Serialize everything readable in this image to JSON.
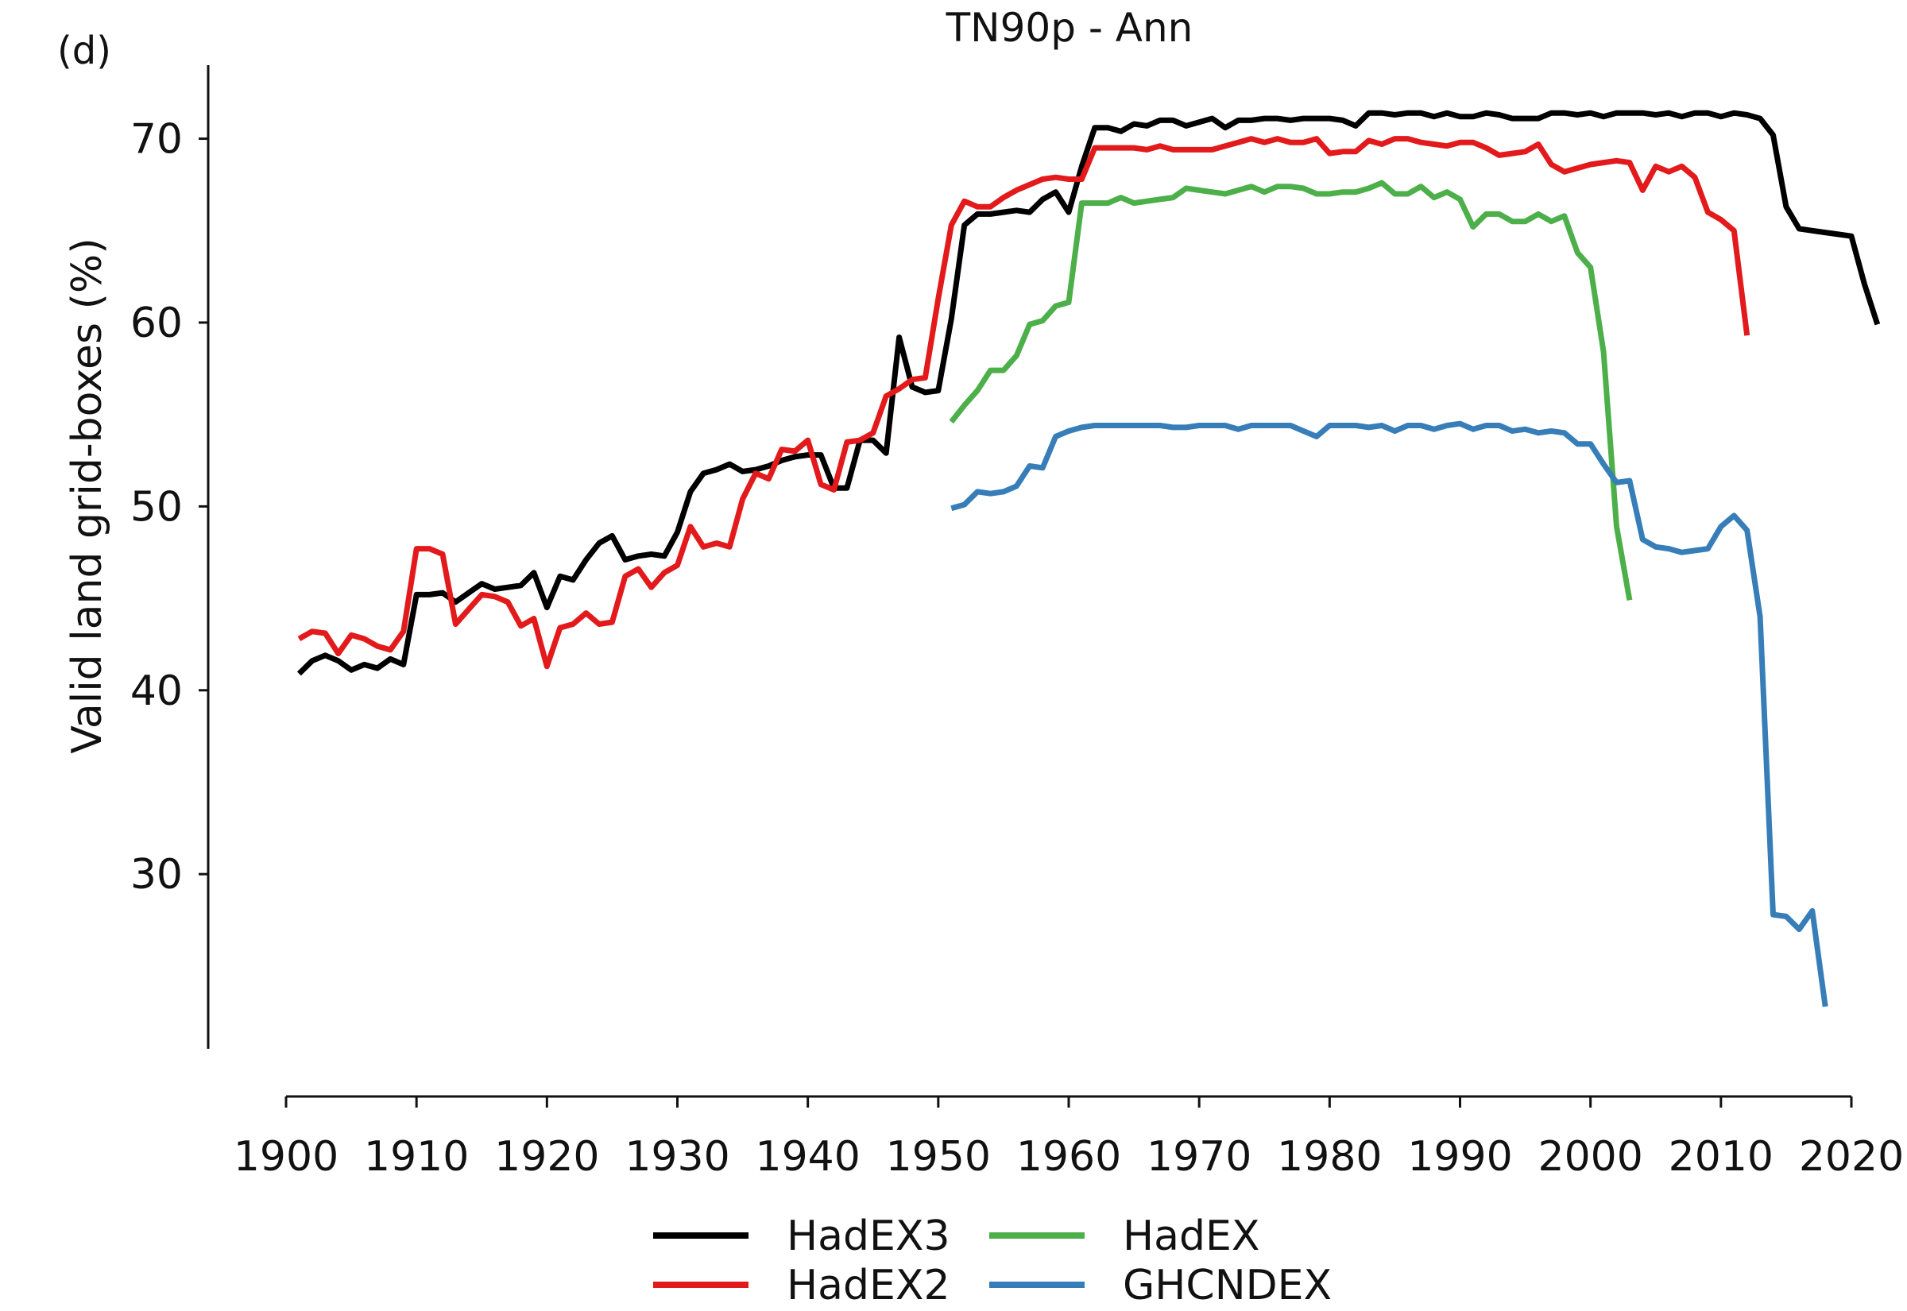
{
  "panel_label": "(d)",
  "chart_data": {
    "type": "line",
    "title": "TN90p - Ann",
    "xlabel": "",
    "ylabel": "Valid land grid-boxes (%)",
    "xlim": [
      1900,
      2020
    ],
    "ylim": [
      20.5,
      74
    ],
    "x_ticks": [
      1900,
      1910,
      1920,
      1930,
      1940,
      1950,
      1960,
      1970,
      1980,
      1990,
      2000,
      2010,
      2020
    ],
    "y_ticks": [
      30,
      40,
      50,
      60,
      70
    ],
    "grid": false,
    "legend_position": "bottom",
    "series": [
      {
        "name": "HadEX3",
        "color": "#000000",
        "x_start": 1901,
        "values": [
          40.9,
          41.6,
          41.9,
          41.6,
          41.1,
          41.4,
          41.2,
          41.7,
          41.4,
          45.2,
          45.2,
          45.3,
          44.8,
          45.3,
          45.8,
          45.5,
          45.6,
          45.7,
          46.4,
          44.5,
          46.2,
          46.0,
          47.1,
          48.0,
          48.4,
          47.1,
          47.3,
          47.4,
          47.3,
          48.6,
          50.8,
          51.8,
          52.0,
          52.3,
          51.9,
          52.0,
          52.2,
          52.5,
          52.7,
          52.8,
          52.8,
          51.0,
          51.0,
          53.6,
          53.6,
          52.9,
          59.2,
          56.5,
          56.2,
          56.3,
          60.2,
          65.3,
          65.9,
          65.9,
          66.0,
          66.1,
          66.0,
          66.7,
          67.1,
          66.0,
          68.5,
          70.6,
          70.6,
          70.4,
          70.8,
          70.7,
          71.0,
          71.0,
          70.7,
          70.9,
          71.1,
          70.6,
          71.0,
          71.0,
          71.1,
          71.1,
          71.0,
          71.1,
          71.1,
          71.1,
          71.0,
          70.7,
          71.4,
          71.4,
          71.3,
          71.4,
          71.4,
          71.2,
          71.4,
          71.2,
          71.2,
          71.4,
          71.3,
          71.1,
          71.1,
          71.1,
          71.4,
          71.4,
          71.3,
          71.4,
          71.2,
          71.4,
          71.4,
          71.4,
          71.3,
          71.4,
          71.2,
          71.4,
          71.4,
          71.2,
          71.4,
          71.3,
          71.1,
          70.2,
          66.3,
          65.1,
          65.0,
          64.9,
          64.8,
          64.7,
          62.1,
          59.9
        ]
      },
      {
        "name": "HadEX2",
        "color": "#e31a1c",
        "x_start": 1901,
        "values": [
          42.8,
          43.2,
          43.1,
          42.0,
          43.0,
          42.8,
          42.4,
          42.2,
          43.2,
          47.7,
          47.7,
          47.4,
          43.6,
          44.4,
          45.2,
          45.1,
          44.8,
          43.5,
          43.9,
          41.3,
          43.4,
          43.6,
          44.2,
          43.6,
          43.7,
          46.2,
          46.6,
          45.6,
          46.4,
          46.8,
          48.9,
          47.8,
          48.0,
          47.8,
          50.4,
          51.8,
          51.5,
          53.1,
          53.0,
          53.6,
          51.2,
          50.9,
          53.5,
          53.6,
          54.0,
          56.0,
          56.4,
          56.9,
          57.0,
          61.3,
          65.3,
          66.6,
          66.3,
          66.3,
          66.8,
          67.2,
          67.5,
          67.8,
          67.9,
          67.8,
          67.8,
          69.5,
          69.5,
          69.5,
          69.5,
          69.4,
          69.6,
          69.4,
          69.4,
          69.4,
          69.4,
          69.6,
          69.8,
          70.0,
          69.8,
          70.0,
          69.8,
          69.8,
          70.0,
          69.2,
          69.3,
          69.3,
          69.9,
          69.7,
          70.0,
          70.0,
          69.8,
          69.7,
          69.6,
          69.8,
          69.8,
          69.5,
          69.1,
          69.2,
          69.3,
          69.7,
          68.6,
          68.2,
          68.4,
          68.6,
          68.7,
          68.8,
          68.7,
          67.2,
          68.5,
          68.2,
          68.5,
          67.9,
          66.0,
          65.6,
          65.0,
          59.3
        ]
      },
      {
        "name": "HadEX",
        "color": "#4daf4a",
        "x_start": 1951,
        "values": [
          54.6,
          55.5,
          56.3,
          57.4,
          57.4,
          58.2,
          59.9,
          60.1,
          60.9,
          61.1,
          66.5,
          66.5,
          66.5,
          66.8,
          66.5,
          66.6,
          66.7,
          66.8,
          67.3,
          67.2,
          67.1,
          67.0,
          67.2,
          67.4,
          67.1,
          67.4,
          67.4,
          67.3,
          67.0,
          67.0,
          67.1,
          67.1,
          67.3,
          67.6,
          67.0,
          67.0,
          67.4,
          66.8,
          67.1,
          66.7,
          65.2,
          65.9,
          65.9,
          65.5,
          65.5,
          65.9,
          65.5,
          65.8,
          63.8,
          63.0,
          58.4,
          48.9,
          44.9
        ]
      },
      {
        "name": "GHCNDEX",
        "color": "#377eb8",
        "x_start": 1951,
        "values": [
          49.9,
          50.1,
          50.8,
          50.7,
          50.8,
          51.1,
          52.2,
          52.1,
          53.8,
          54.1,
          54.3,
          54.4,
          54.4,
          54.4,
          54.4,
          54.4,
          54.4,
          54.3,
          54.3,
          54.4,
          54.4,
          54.4,
          54.2,
          54.4,
          54.4,
          54.4,
          54.4,
          54.1,
          53.8,
          54.4,
          54.4,
          54.4,
          54.3,
          54.4,
          54.1,
          54.4,
          54.4,
          54.2,
          54.4,
          54.5,
          54.2,
          54.4,
          54.4,
          54.1,
          54.2,
          54.0,
          54.1,
          54.0,
          53.4,
          53.4,
          52.3,
          51.3,
          51.4,
          48.2,
          47.8,
          47.7,
          47.5,
          47.6,
          47.7,
          48.9,
          49.5,
          48.7,
          44.0,
          27.8,
          27.7,
          27.0,
          28.0,
          22.8
        ]
      }
    ]
  }
}
